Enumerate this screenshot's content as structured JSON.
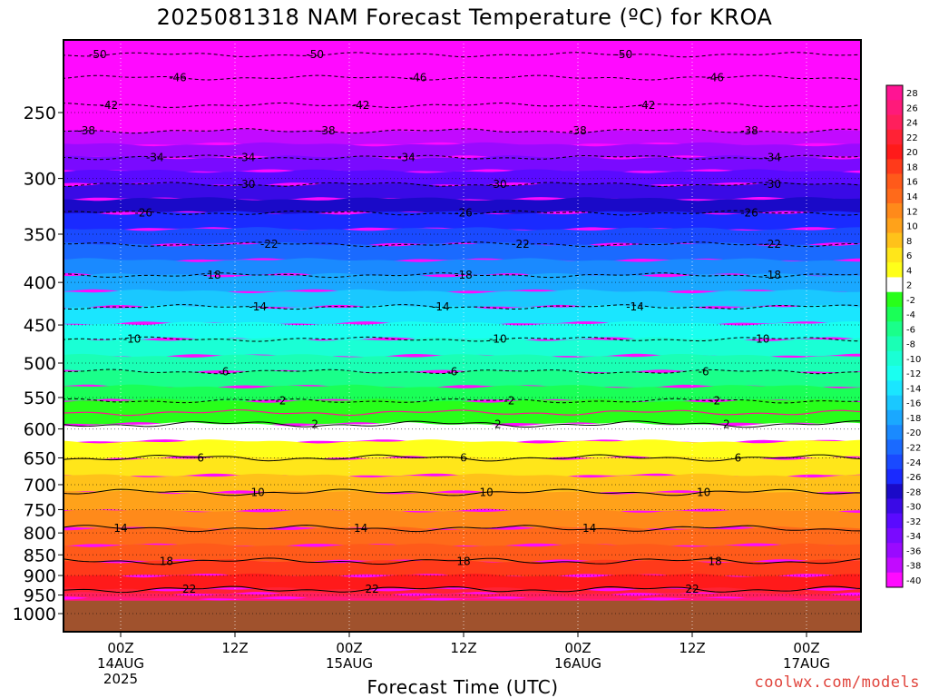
{
  "title": "2025081318 NAM Forecast Temperature (ºC) for KROA",
  "xaxis_title": "Forecast Time (UTC)",
  "credit": "coolwx.com/models",
  "chart_data": {
    "type": "heatmap",
    "title": "2025081318 NAM Forecast Temperature (ºC) for KROA",
    "xlabel": "Forecast Time (UTC)",
    "ylabel": "",
    "y_scale": "log-pressure",
    "y_reversed": true,
    "ylim": [
      1000,
      200
    ],
    "xlim_hours": [
      -5,
      65
    ],
    "x_ticks": [
      {
        "hour": 0,
        "lines": [
          "00Z",
          "14AUG",
          "2025"
        ]
      },
      {
        "hour": 10,
        "lines": [
          "12Z"
        ]
      },
      {
        "hour": 20,
        "lines": [
          "00Z",
          "15AUG"
        ]
      },
      {
        "hour": 30,
        "lines": [
          "12Z"
        ]
      },
      {
        "hour": 40,
        "lines": [
          "00Z",
          "16AUG"
        ]
      },
      {
        "hour": 50,
        "lines": [
          "12Z"
        ]
      },
      {
        "hour": 60,
        "lines": [
          "00Z",
          "17AUG"
        ]
      }
    ],
    "y_ticks": [
      1000,
      950,
      900,
      850,
      800,
      750,
      700,
      650,
      600,
      550,
      500,
      450,
      400,
      350,
      300,
      250
    ],
    "colorbar": {
      "levels": [
        28,
        26,
        24,
        22,
        20,
        18,
        16,
        14,
        12,
        10,
        8,
        6,
        4,
        2,
        -2,
        -4,
        -6,
        -8,
        -10,
        -12,
        -14,
        -16,
        -18,
        -20,
        -22,
        -24,
        -26,
        -28,
        -30,
        -32,
        -34,
        -36,
        -38,
        -40
      ],
      "colors": [
        "#ff1493",
        "#ff1a7a",
        "#ff1f5c",
        "#ff2235",
        "#ff1a1a",
        "#ff3a1a",
        "#ff5a1a",
        "#ff6a1a",
        "#ff8a1a",
        "#ffa21a",
        "#ffc21a",
        "#ffe61a",
        "#ffff1a",
        "#ffffff",
        "#28ff1a",
        "#1aff57",
        "#1aff8a",
        "#1affb5",
        "#1affd5",
        "#1afff0",
        "#1ae6ff",
        "#1ac8ff",
        "#1aa8ff",
        "#1a8aff",
        "#1a6aff",
        "#1a4aff",
        "#1a2aff",
        "#1a0ac8",
        "#3a0ae6",
        "#5a0aff",
        "#7a0aff",
        "#9a0aff",
        "#c20aff",
        "#ff0aff"
      ]
    },
    "contours": [
      {
        "value": -50,
        "pressure": 213
      },
      {
        "value": -46,
        "pressure": 227
      },
      {
        "value": -42,
        "pressure": 245
      },
      {
        "value": -38,
        "pressure": 263
      },
      {
        "value": -34,
        "pressure": 283
      },
      {
        "value": -30,
        "pressure": 305
      },
      {
        "value": -26,
        "pressure": 330
      },
      {
        "value": -22,
        "pressure": 360
      },
      {
        "value": -18,
        "pressure": 392
      },
      {
        "value": -14,
        "pressure": 428
      },
      {
        "value": -10,
        "pressure": 468
      },
      {
        "value": -6,
        "pressure": 512
      },
      {
        "value": -2,
        "pressure": 555
      },
      {
        "value": 2,
        "pressure": 592
      },
      {
        "value": 6,
        "pressure": 650
      },
      {
        "value": 10,
        "pressure": 715
      },
      {
        "value": 14,
        "pressure": 790
      },
      {
        "value": 18,
        "pressure": 865
      },
      {
        "value": 22,
        "pressure": 935
      }
    ],
    "ground_pressure": 965,
    "ground_color": "#a0522d"
  }
}
